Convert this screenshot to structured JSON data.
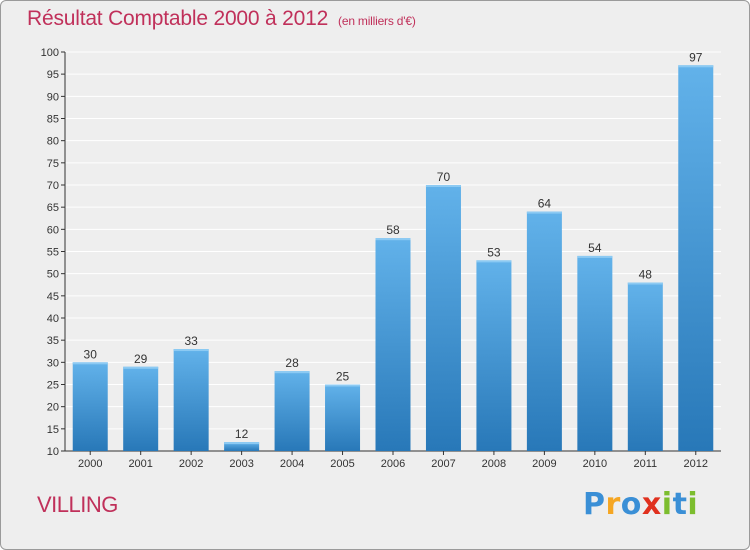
{
  "chart_data": {
    "type": "bar",
    "title": "Résultat Comptable 2000 à 2012",
    "subtitle": "(en milliers d'€)",
    "categories": [
      "2000",
      "2001",
      "2002",
      "2003",
      "2004",
      "2005",
      "2006",
      "2007",
      "2008",
      "2009",
      "2010",
      "2011",
      "2012"
    ],
    "values": [
      30,
      29,
      33,
      12,
      28,
      25,
      58,
      70,
      53,
      64,
      54,
      48,
      97
    ],
    "ylim": [
      10,
      100
    ],
    "yticks": [
      10,
      15,
      20,
      25,
      30,
      35,
      40,
      45,
      50,
      55,
      60,
      65,
      70,
      75,
      80,
      85,
      90,
      95,
      100
    ],
    "grid": true,
    "xlabel": "",
    "ylabel": ""
  },
  "commune": "VILLING",
  "logo": {
    "letters": [
      {
        "char": "P",
        "color": "#3a8fd6"
      },
      {
        "char": "r",
        "color": "#f5a623"
      },
      {
        "char": "o",
        "color": "#3a8fd6"
      },
      {
        "char": "x",
        "color": "#e0301e"
      },
      {
        "char": "i",
        "color": "#7cbd2e"
      },
      {
        "char": "t",
        "color": "#3a8fd6"
      },
      {
        "char": "i",
        "color": "#7cbd2e"
      }
    ]
  },
  "colors": {
    "bar_top": "#62b2ea",
    "bar_bottom": "#2878b8",
    "accent": "#c0305a",
    "grid": "#ffffff",
    "axis": "#333333"
  }
}
